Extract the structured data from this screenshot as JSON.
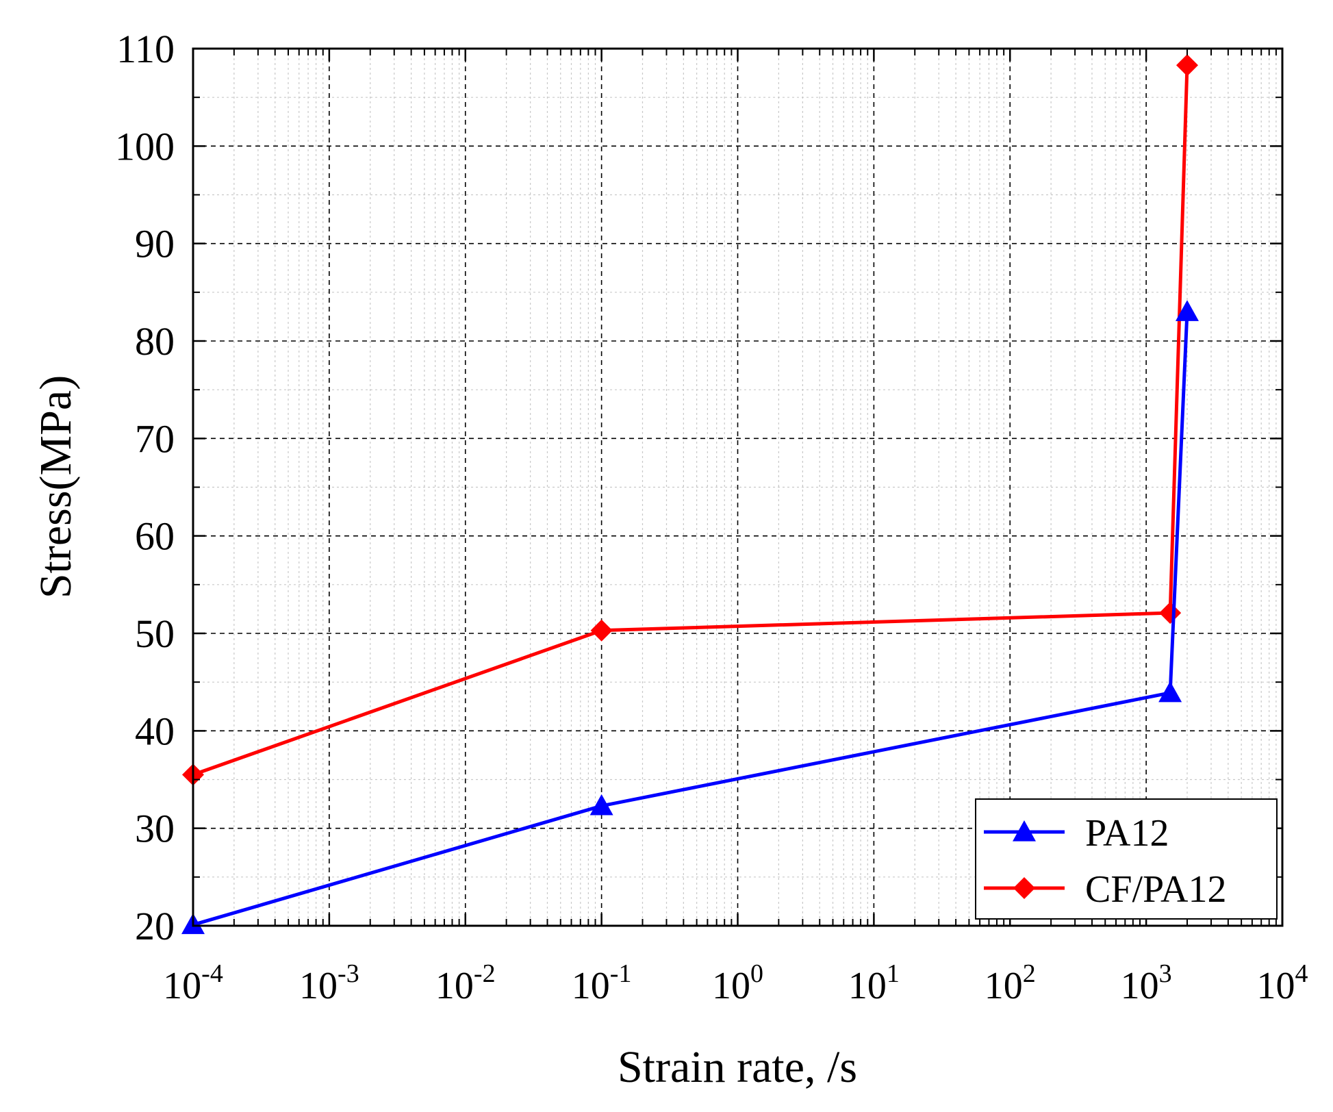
{
  "chart_data": {
    "type": "line",
    "xscale": "log",
    "xlabel": "Strain rate, /s",
    "ylabel": "Stress(MPa)",
    "xlim": [
      0.0001,
      10000
    ],
    "ylim": [
      20,
      110
    ],
    "grid": true,
    "legend_position": "bottom-right",
    "x_ticks": [
      {
        "value": 0.0001,
        "base": "10",
        "exp": "-4"
      },
      {
        "value": 0.001,
        "base": "10",
        "exp": "-3"
      },
      {
        "value": 0.01,
        "base": "10",
        "exp": "-2"
      },
      {
        "value": 0.1,
        "base": "10",
        "exp": "-1"
      },
      {
        "value": 1,
        "base": "10",
        "exp": "0"
      },
      {
        "value": 10,
        "base": "10",
        "exp": "1"
      },
      {
        "value": 100,
        "base": "10",
        "exp": "2"
      },
      {
        "value": 1000,
        "base": "10",
        "exp": "3"
      },
      {
        "value": 10000,
        "base": "10",
        "exp": "4"
      }
    ],
    "y_ticks": [
      {
        "value": 20,
        "label": "20"
      },
      {
        "value": 30,
        "label": "30"
      },
      {
        "value": 40,
        "label": "40"
      },
      {
        "value": 50,
        "label": "50"
      },
      {
        "value": 60,
        "label": "60"
      },
      {
        "value": 70,
        "label": "70"
      },
      {
        "value": 80,
        "label": "80"
      },
      {
        "value": 90,
        "label": "90"
      },
      {
        "value": 100,
        "label": "100"
      },
      {
        "value": 110,
        "label": "110"
      }
    ],
    "series": [
      {
        "name": "PA12",
        "color": "#0000ff",
        "marker": "triangle",
        "x": [
          0.0001,
          0.1,
          1500,
          2000
        ],
        "y": [
          20.1,
          32.3,
          43.9,
          83.0
        ]
      },
      {
        "name": "CF/PA12",
        "color": "#ff0000",
        "marker": "diamond",
        "x": [
          0.0001,
          0.1,
          1500,
          2000
        ],
        "y": [
          35.5,
          50.3,
          52.1,
          108.3
        ]
      }
    ]
  }
}
